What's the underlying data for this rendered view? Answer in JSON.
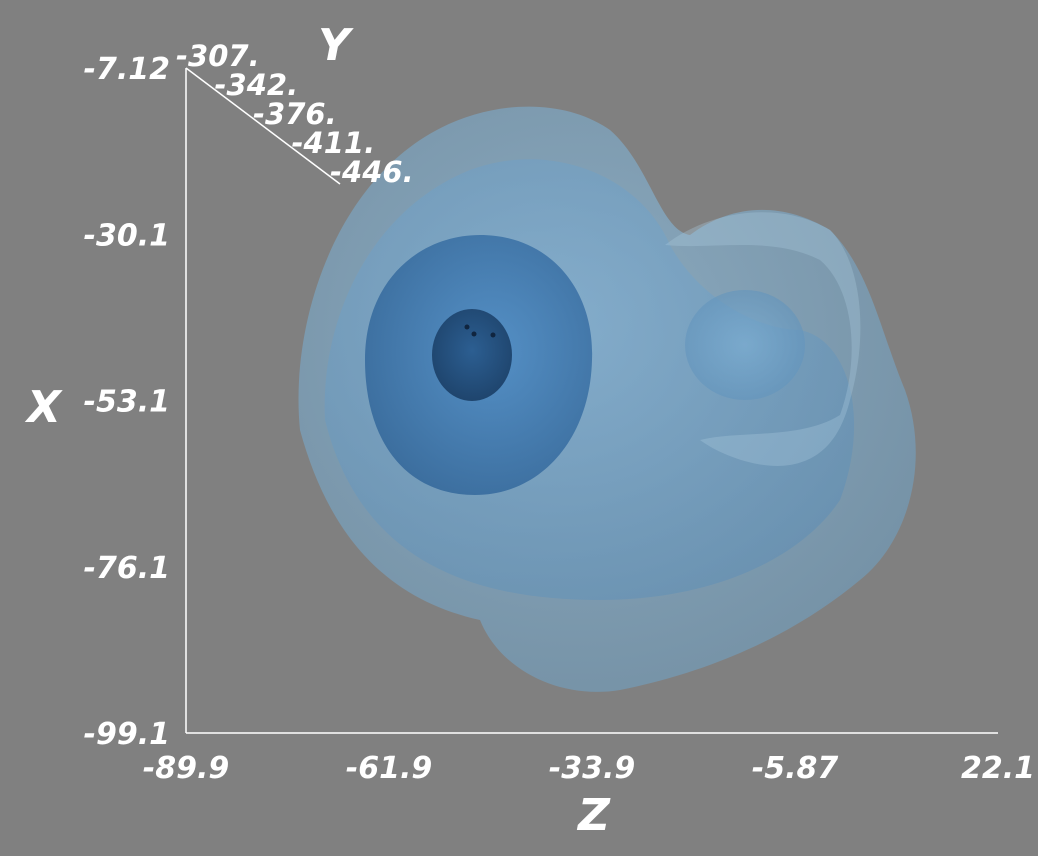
{
  "chart_data": {
    "type": "3d-isosurface",
    "title": "",
    "background_color": "#808080",
    "axis_color": "#ffffff",
    "surface_color": "#5b9bd5",
    "axes": {
      "x": {
        "label": "X",
        "ticks": [
          "-7.12",
          "-30.1",
          "-53.1",
          "-76.1",
          "-99.1"
        ],
        "range": [
          -99.1,
          -7.12
        ]
      },
      "y": {
        "label": "Y",
        "ticks": [
          "-307.",
          "-342.",
          "-376.",
          "-411.",
          "-446."
        ],
        "range": [
          -446,
          -307
        ]
      },
      "z": {
        "label": "Z",
        "ticks": [
          "-89.9",
          "-61.9",
          "-33.9",
          "-5.87",
          "22.1"
        ],
        "range": [
          -89.9,
          22.1
        ]
      }
    },
    "isosurfaces": [
      {
        "level": 1,
        "opacity": 0.35
      },
      {
        "level": 2,
        "opacity": 0.45
      },
      {
        "level": 3,
        "opacity": 0.6
      },
      {
        "level": 4,
        "opacity": 0.75
      }
    ]
  }
}
